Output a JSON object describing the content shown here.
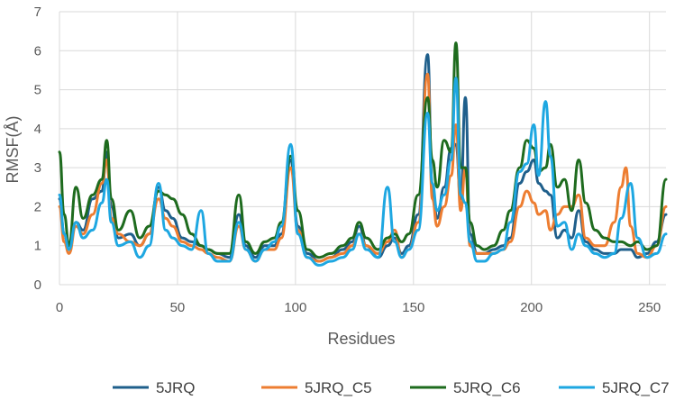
{
  "chart_data": {
    "type": "line",
    "title": "",
    "xlabel": "Residues",
    "ylabel": "RMSF(Å)",
    "xlim": [
      0,
      257
    ],
    "ylim": [
      0,
      7
    ],
    "xticks": [
      0,
      50,
      100,
      150,
      200,
      250
    ],
    "yticks": [
      0,
      1,
      2,
      3,
      4,
      5,
      6,
      7
    ],
    "grid": "both",
    "legend_position": "bottom",
    "series": [
      {
        "name": "5JRQ",
        "color": "#1f5f8b",
        "points": [
          [
            0,
            2.2
          ],
          [
            2,
            1.3
          ],
          [
            4,
            0.9
          ],
          [
            7,
            1.6
          ],
          [
            10,
            1.4
          ],
          [
            14,
            2.2
          ],
          [
            18,
            2.4
          ],
          [
            20,
            3.4
          ],
          [
            22,
            2.0
          ],
          [
            25,
            1.2
          ],
          [
            30,
            1.3
          ],
          [
            34,
            1.0
          ],
          [
            38,
            1.3
          ],
          [
            42,
            2.5
          ],
          [
            45,
            1.9
          ],
          [
            48,
            1.7
          ],
          [
            52,
            1.2
          ],
          [
            56,
            1.1
          ],
          [
            60,
            1.0
          ],
          [
            63,
            0.9
          ],
          [
            67,
            0.8
          ],
          [
            72,
            0.7
          ],
          [
            76,
            1.8
          ],
          [
            79,
            1.0
          ],
          [
            83,
            0.7
          ],
          [
            87,
            1.0
          ],
          [
            91,
            1.0
          ],
          [
            94,
            1.3
          ],
          [
            98,
            3.2
          ],
          [
            101,
            1.5
          ],
          [
            105,
            0.8
          ],
          [
            110,
            0.6
          ],
          [
            115,
            0.7
          ],
          [
            120,
            0.9
          ],
          [
            124,
            1.1
          ],
          [
            127,
            1.5
          ],
          [
            130,
            1.0
          ],
          [
            135,
            0.7
          ],
          [
            139,
            1.0
          ],
          [
            142,
            1.2
          ],
          [
            145,
            0.8
          ],
          [
            148,
            1.0
          ],
          [
            152,
            1.8
          ],
          [
            156,
            5.9
          ],
          [
            158,
            2.5
          ],
          [
            160,
            1.7
          ],
          [
            163,
            2.5
          ],
          [
            166,
            3.5
          ],
          [
            168,
            3.6
          ],
          [
            170,
            2.2
          ],
          [
            172,
            4.8
          ],
          [
            174,
            1.3
          ],
          [
            177,
            0.8
          ],
          [
            180,
            0.8
          ],
          [
            184,
            0.9
          ],
          [
            188,
            1.0
          ],
          [
            191,
            1.2
          ],
          [
            195,
            2.6
          ],
          [
            198,
            2.9
          ],
          [
            201,
            3.2
          ],
          [
            203,
            2.6
          ],
          [
            206,
            2.4
          ],
          [
            208,
            2.3
          ],
          [
            211,
            1.2
          ],
          [
            214,
            1.4
          ],
          [
            217,
            1.2
          ],
          [
            220,
            1.9
          ],
          [
            223,
            1.1
          ],
          [
            227,
            0.9
          ],
          [
            231,
            0.8
          ],
          [
            235,
            0.8
          ],
          [
            238,
            0.9
          ],
          [
            242,
            0.9
          ],
          [
            245,
            0.7
          ],
          [
            249,
            0.8
          ],
          [
            253,
            1.1
          ],
          [
            257,
            1.8
          ]
        ]
      },
      {
        "name": "5JRQ_C5",
        "color": "#ed7d31",
        "points": [
          [
            0,
            2.0
          ],
          [
            2,
            1.1
          ],
          [
            4,
            0.8
          ],
          [
            7,
            1.5
          ],
          [
            10,
            1.3
          ],
          [
            14,
            1.8
          ],
          [
            18,
            2.6
          ],
          [
            20,
            3.2
          ],
          [
            22,
            1.7
          ],
          [
            25,
            1.3
          ],
          [
            30,
            1.1
          ],
          [
            34,
            1.0
          ],
          [
            38,
            1.3
          ],
          [
            42,
            2.2
          ],
          [
            45,
            1.7
          ],
          [
            48,
            1.5
          ],
          [
            52,
            1.1
          ],
          [
            56,
            1.0
          ],
          [
            60,
            0.9
          ],
          [
            63,
            0.8
          ],
          [
            67,
            0.7
          ],
          [
            72,
            0.6
          ],
          [
            76,
            1.5
          ],
          [
            79,
            0.9
          ],
          [
            83,
            0.6
          ],
          [
            87,
            0.9
          ],
          [
            91,
            0.9
          ],
          [
            94,
            1.2
          ],
          [
            98,
            3.0
          ],
          [
            101,
            1.4
          ],
          [
            105,
            0.7
          ],
          [
            110,
            0.6
          ],
          [
            115,
            0.7
          ],
          [
            120,
            0.8
          ],
          [
            124,
            1.0
          ],
          [
            127,
            1.3
          ],
          [
            130,
            1.0
          ],
          [
            135,
            0.8
          ],
          [
            139,
            1.1
          ],
          [
            142,
            1.4
          ],
          [
            145,
            0.7
          ],
          [
            148,
            0.9
          ],
          [
            152,
            1.6
          ],
          [
            156,
            5.4
          ],
          [
            158,
            2.2
          ],
          [
            160,
            1.5
          ],
          [
            163,
            2.0
          ],
          [
            166,
            2.8
          ],
          [
            168,
            4.1
          ],
          [
            170,
            1.9
          ],
          [
            172,
            3.0
          ],
          [
            174,
            1.0
          ],
          [
            177,
            0.8
          ],
          [
            180,
            0.8
          ],
          [
            184,
            0.8
          ],
          [
            188,
            0.9
          ],
          [
            191,
            1.1
          ],
          [
            195,
            2.0
          ],
          [
            198,
            2.4
          ],
          [
            201,
            2.1
          ],
          [
            203,
            1.8
          ],
          [
            206,
            1.9
          ],
          [
            208,
            1.4
          ],
          [
            211,
            1.8
          ],
          [
            214,
            2.0
          ],
          [
            217,
            2.0
          ],
          [
            220,
            2.3
          ],
          [
            223,
            1.2
          ],
          [
            227,
            1.0
          ],
          [
            231,
            1.0
          ],
          [
            235,
            1.6
          ],
          [
            238,
            2.5
          ],
          [
            240,
            3.0
          ],
          [
            242,
            1.5
          ],
          [
            245,
            0.8
          ],
          [
            249,
            0.7
          ],
          [
            253,
            1.0
          ],
          [
            257,
            2.0
          ]
        ]
      },
      {
        "name": "5JRQ_C6",
        "color": "#1e6b1e",
        "points": [
          [
            0,
            3.4
          ],
          [
            2,
            1.8
          ],
          [
            4,
            1.0
          ],
          [
            7,
            2.5
          ],
          [
            10,
            1.7
          ],
          [
            14,
            2.3
          ],
          [
            18,
            2.7
          ],
          [
            20,
            3.7
          ],
          [
            22,
            2.2
          ],
          [
            25,
            1.4
          ],
          [
            30,
            1.9
          ],
          [
            34,
            1.2
          ],
          [
            38,
            1.5
          ],
          [
            42,
            2.4
          ],
          [
            45,
            2.3
          ],
          [
            48,
            2.2
          ],
          [
            52,
            1.8
          ],
          [
            56,
            1.3
          ],
          [
            60,
            1.0
          ],
          [
            63,
            0.9
          ],
          [
            67,
            0.8
          ],
          [
            72,
            0.8
          ],
          [
            76,
            2.3
          ],
          [
            79,
            1.1
          ],
          [
            83,
            0.8
          ],
          [
            87,
            1.1
          ],
          [
            91,
            1.2
          ],
          [
            94,
            1.6
          ],
          [
            98,
            3.3
          ],
          [
            101,
            1.9
          ],
          [
            105,
            0.9
          ],
          [
            110,
            0.7
          ],
          [
            115,
            0.8
          ],
          [
            120,
            1.0
          ],
          [
            124,
            1.2
          ],
          [
            127,
            1.6
          ],
          [
            130,
            1.2
          ],
          [
            135,
            0.9
          ],
          [
            139,
            1.2
          ],
          [
            142,
            1.3
          ],
          [
            145,
            1.1
          ],
          [
            148,
            1.3
          ],
          [
            152,
            2.3
          ],
          [
            156,
            4.8
          ],
          [
            158,
            3.2
          ],
          [
            160,
            2.5
          ],
          [
            163,
            3.7
          ],
          [
            166,
            3.4
          ],
          [
            168,
            6.2
          ],
          [
            170,
            3.0
          ],
          [
            172,
            3.0
          ],
          [
            174,
            1.6
          ],
          [
            177,
            1.0
          ],
          [
            180,
            0.9
          ],
          [
            184,
            1.0
          ],
          [
            188,
            1.4
          ],
          [
            191,
            1.9
          ],
          [
            195,
            3.0
          ],
          [
            198,
            3.7
          ],
          [
            201,
            3.5
          ],
          [
            203,
            2.9
          ],
          [
            206,
            3.0
          ],
          [
            208,
            3.6
          ],
          [
            211,
            2.5
          ],
          [
            214,
            2.7
          ],
          [
            217,
            1.9
          ],
          [
            220,
            3.2
          ],
          [
            223,
            2.1
          ],
          [
            227,
            1.4
          ],
          [
            231,
            1.2
          ],
          [
            235,
            1.1
          ],
          [
            238,
            1.1
          ],
          [
            242,
            1.0
          ],
          [
            245,
            1.1
          ],
          [
            249,
            0.9
          ],
          [
            253,
            1.0
          ],
          [
            257,
            2.7
          ]
        ]
      },
      {
        "name": "5JRQ_C7",
        "color": "#1ea7e1",
        "points": [
          [
            0,
            2.3
          ],
          [
            2,
            1.3
          ],
          [
            4,
            0.9
          ],
          [
            7,
            1.6
          ],
          [
            10,
            1.2
          ],
          [
            14,
            1.4
          ],
          [
            18,
            2.1
          ],
          [
            20,
            2.7
          ],
          [
            22,
            1.6
          ],
          [
            25,
            1.0
          ],
          [
            30,
            1.1
          ],
          [
            34,
            0.7
          ],
          [
            38,
            1.0
          ],
          [
            42,
            2.6
          ],
          [
            45,
            1.4
          ],
          [
            48,
            1.2
          ],
          [
            52,
            1.0
          ],
          [
            56,
            0.9
          ],
          [
            60,
            1.9
          ],
          [
            63,
            0.8
          ],
          [
            67,
            0.6
          ],
          [
            72,
            0.6
          ],
          [
            76,
            1.6
          ],
          [
            79,
            0.9
          ],
          [
            83,
            0.6
          ],
          [
            87,
            0.9
          ],
          [
            91,
            1.1
          ],
          [
            94,
            1.5
          ],
          [
            98,
            3.6
          ],
          [
            101,
            1.3
          ],
          [
            105,
            0.7
          ],
          [
            110,
            0.5
          ],
          [
            115,
            0.6
          ],
          [
            120,
            0.7
          ],
          [
            124,
            0.9
          ],
          [
            127,
            1.3
          ],
          [
            130,
            0.9
          ],
          [
            135,
            0.7
          ],
          [
            139,
            2.5
          ],
          [
            142,
            1.1
          ],
          [
            145,
            0.7
          ],
          [
            148,
            0.9
          ],
          [
            152,
            1.4
          ],
          [
            156,
            4.4
          ],
          [
            158,
            2.6
          ],
          [
            160,
            1.9
          ],
          [
            163,
            2.3
          ],
          [
            166,
            3.2
          ],
          [
            168,
            5.3
          ],
          [
            170,
            2.3
          ],
          [
            172,
            2.1
          ],
          [
            174,
            1.1
          ],
          [
            177,
            0.6
          ],
          [
            180,
            0.6
          ],
          [
            184,
            0.8
          ],
          [
            188,
            0.9
          ],
          [
            191,
            1.6
          ],
          [
            195,
            2.9
          ],
          [
            198,
            3.1
          ],
          [
            201,
            4.1
          ],
          [
            203,
            2.8
          ],
          [
            206,
            4.7
          ],
          [
            208,
            3.3
          ],
          [
            211,
            1.5
          ],
          [
            214,
            1.6
          ],
          [
            217,
            0.9
          ],
          [
            220,
            1.3
          ],
          [
            223,
            1.0
          ],
          [
            227,
            0.8
          ],
          [
            231,
            0.7
          ],
          [
            235,
            0.8
          ],
          [
            238,
            1.7
          ],
          [
            242,
            2.6
          ],
          [
            245,
            1.2
          ],
          [
            249,
            0.7
          ],
          [
            253,
            0.8
          ],
          [
            257,
            1.3
          ]
        ]
      }
    ]
  }
}
